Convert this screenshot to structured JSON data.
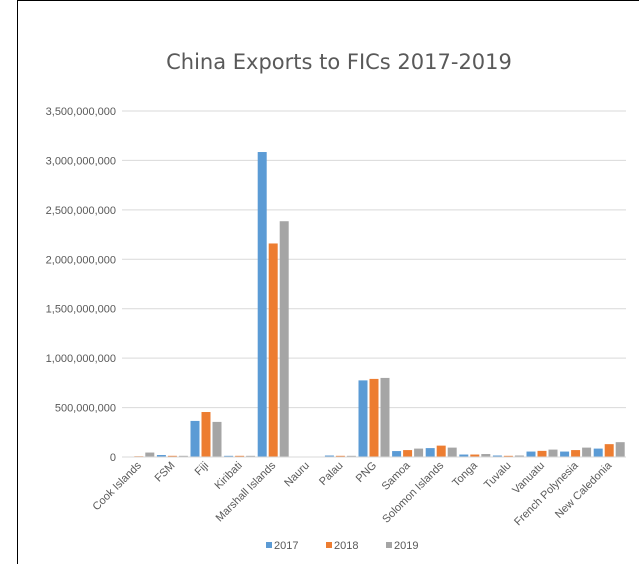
{
  "chart_data": {
    "type": "bar",
    "title": "China Exports to FICs 2017-2019",
    "xlabel": "",
    "ylabel": "",
    "ylim": [
      0,
      3500000000
    ],
    "yticks": [
      "0",
      "500,000,000",
      "1,000,000,000",
      "1,500,000,000",
      "2,000,000,000",
      "2,500,000,000",
      "3,000,000,000",
      "3,500,000,000"
    ],
    "categories": [
      "Cook Islands",
      "FSM",
      "Fiji",
      "Kiribati",
      "Marshall Islands",
      "Nauru",
      "Palau",
      "PNG",
      "Samoa",
      "Solomon Islands",
      "Tonga",
      "Tuvalu",
      "Vanuatu",
      "French Polynesia",
      "New Caledonia"
    ],
    "series": [
      {
        "name": "2017",
        "color": "#5B9BD5",
        "values": [
          5000000,
          20000000,
          365000000,
          12000000,
          3085000000,
          3000000,
          15000000,
          775000000,
          60000000,
          90000000,
          25000000,
          15000000,
          55000000,
          55000000,
          85000000
        ]
      },
      {
        "name": "2018",
        "color": "#ED7D31",
        "values": [
          8000000,
          12000000,
          455000000,
          12000000,
          2160000000,
          3000000,
          12000000,
          790000000,
          70000000,
          115000000,
          25000000,
          12000000,
          62000000,
          70000000,
          130000000
        ]
      },
      {
        "name": "2019",
        "color": "#A5A5A5",
        "values": [
          45000000,
          12000000,
          355000000,
          12000000,
          2385000000,
          3000000,
          12000000,
          800000000,
          85000000,
          95000000,
          30000000,
          15000000,
          75000000,
          95000000,
          150000000
        ]
      }
    ],
    "grid": true,
    "legend_position": "bottom"
  }
}
